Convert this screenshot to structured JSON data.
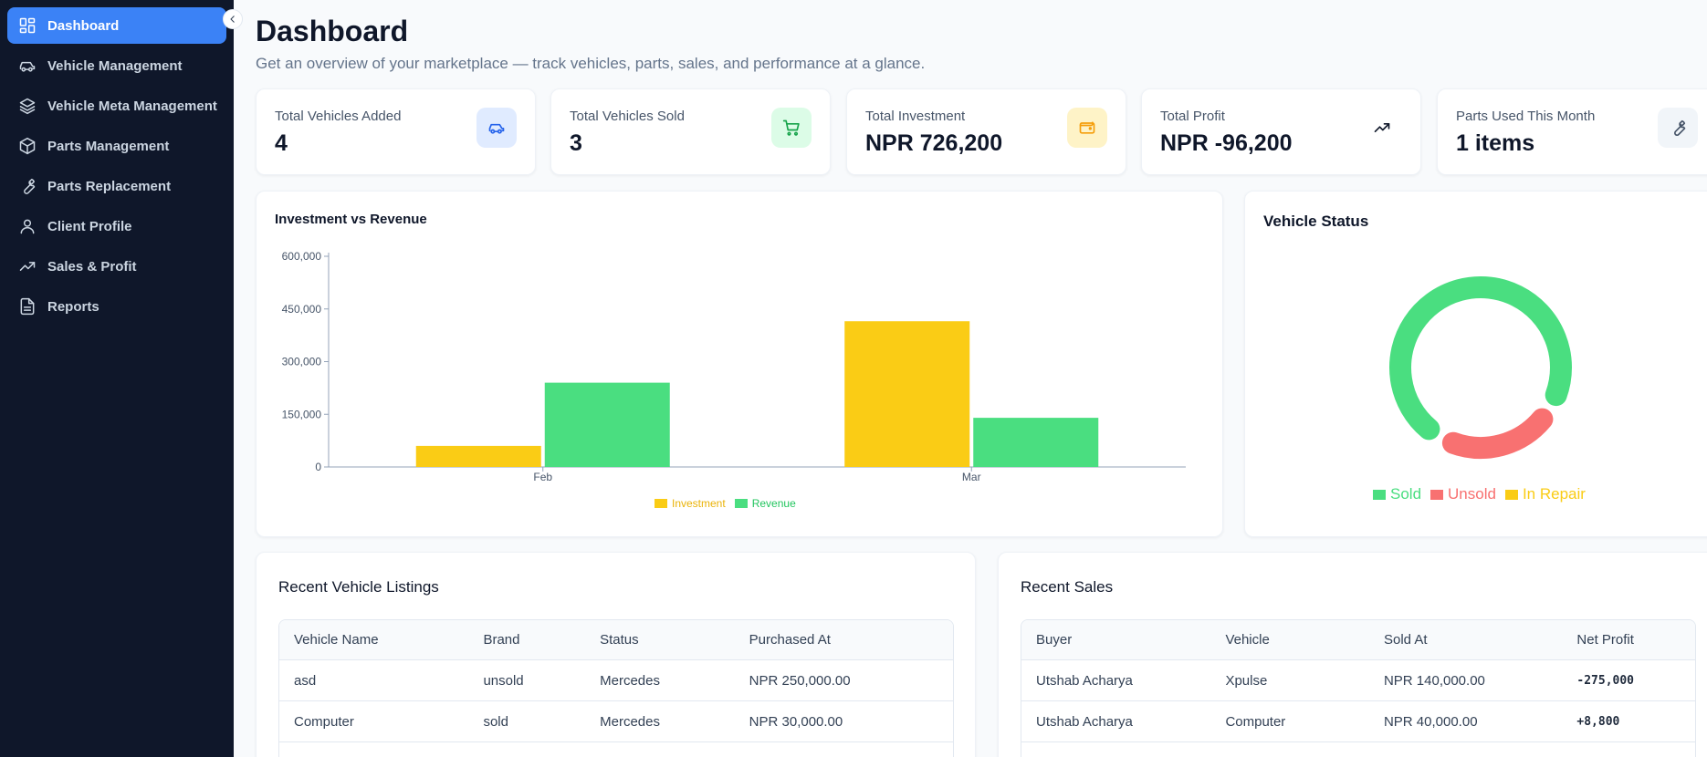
{
  "sidebar": {
    "collapse_icon": "chevron-left-icon",
    "items": [
      {
        "label": "Dashboard",
        "icon": "dashboard-grid-icon",
        "active": true
      },
      {
        "label": "Vehicle Management",
        "icon": "car-icon"
      },
      {
        "label": "Vehicle Meta Management",
        "icon": "layers-icon"
      },
      {
        "label": "Parts Management",
        "icon": "package-icon"
      },
      {
        "label": "Parts Replacement",
        "icon": "wrench-icon"
      },
      {
        "label": "Client Profile",
        "icon": "user-icon"
      },
      {
        "label": "Sales & Profit",
        "icon": "trending-up-icon"
      },
      {
        "label": "Reports",
        "icon": "file-text-icon"
      }
    ]
  },
  "header": {
    "title": "Dashboard",
    "subtitle": "Get an overview of your marketplace — track vehicles, parts, sales, and performance at a glance."
  },
  "stats": [
    {
      "label": "Total Vehicles Added",
      "value": "4",
      "icon": "car-icon",
      "color": "#2563eb",
      "bg": "#e0ebff"
    },
    {
      "label": "Total Vehicles Sold",
      "value": "3",
      "icon": "cart-icon",
      "color": "#16a34a",
      "bg": "#dcfce7"
    },
    {
      "label": "Total Investment",
      "value": "NPR 726,200",
      "icon": "wallet-icon",
      "color": "#f59e0b",
      "bg": "#fef3c7"
    },
    {
      "label": "Total Profit",
      "value": "NPR -96,200",
      "icon": "trending-up-icon",
      "color": "#0f172a",
      "bg": "#ffffff"
    },
    {
      "label": "Parts Used This Month",
      "value": "1 items",
      "icon": "wrench-icon",
      "color": "#475569",
      "bg": "#f1f5f9"
    }
  ],
  "investment_chart": {
    "title": "Investment vs Revenue",
    "ytick_labels": [
      "600,000",
      "450,000",
      "300,000",
      "150,000",
      "0"
    ],
    "legend": [
      {
        "label": "Investment",
        "color": "#facc15"
      },
      {
        "label": "Revenue",
        "color": "#4ade80"
      }
    ]
  },
  "status_chart": {
    "title": "Vehicle Status",
    "legend": [
      {
        "label": "Sold",
        "color": "#4ade80"
      },
      {
        "label": "Unsold",
        "color": "#f87171"
      },
      {
        "label": "In Repair",
        "color": "#facc15"
      }
    ]
  },
  "chart_data": [
    {
      "type": "bar",
      "title": "Investment vs Revenue",
      "categories": [
        "Feb",
        "Mar"
      ],
      "series": [
        {
          "name": "Investment",
          "values": [
            60000,
            415000
          ],
          "color": "#facc15"
        },
        {
          "name": "Revenue",
          "values": [
            240000,
            140000
          ],
          "color": "#4ade80"
        }
      ],
      "ylim": [
        0,
        600000
      ],
      "yticks": [
        0,
        150000,
        300000,
        450000,
        600000
      ],
      "legend": "bottom"
    },
    {
      "type": "pie",
      "title": "Vehicle Status",
      "donut": true,
      "categories": [
        "Sold",
        "Unsold",
        "In Repair"
      ],
      "values": [
        3,
        1,
        0
      ],
      "colors": [
        "#4ade80",
        "#f87171",
        "#facc15"
      ],
      "legend": "bottom"
    }
  ],
  "recent_listings": {
    "title": "Recent Vehicle Listings",
    "columns": [
      "Vehicle Name",
      "Brand",
      "Status",
      "Purchased At"
    ],
    "rows": [
      [
        "asd",
        "unsold",
        "Mercedes",
        "NPR 250,000.00"
      ],
      [
        "Computer",
        "sold",
        "Mercedes",
        "NPR 30,000.00"
      ]
    ]
  },
  "recent_sales": {
    "title": "Recent Sales",
    "columns": [
      "Buyer",
      "Vehicle",
      "Sold At",
      "Net Profit"
    ],
    "rows": [
      [
        "Utshab Acharya",
        "Xpulse",
        "NPR 140,000.00",
        "-275,000"
      ],
      [
        "Utshab Acharya",
        "Computer",
        "NPR 40,000.00",
        "+8,800"
      ]
    ]
  }
}
